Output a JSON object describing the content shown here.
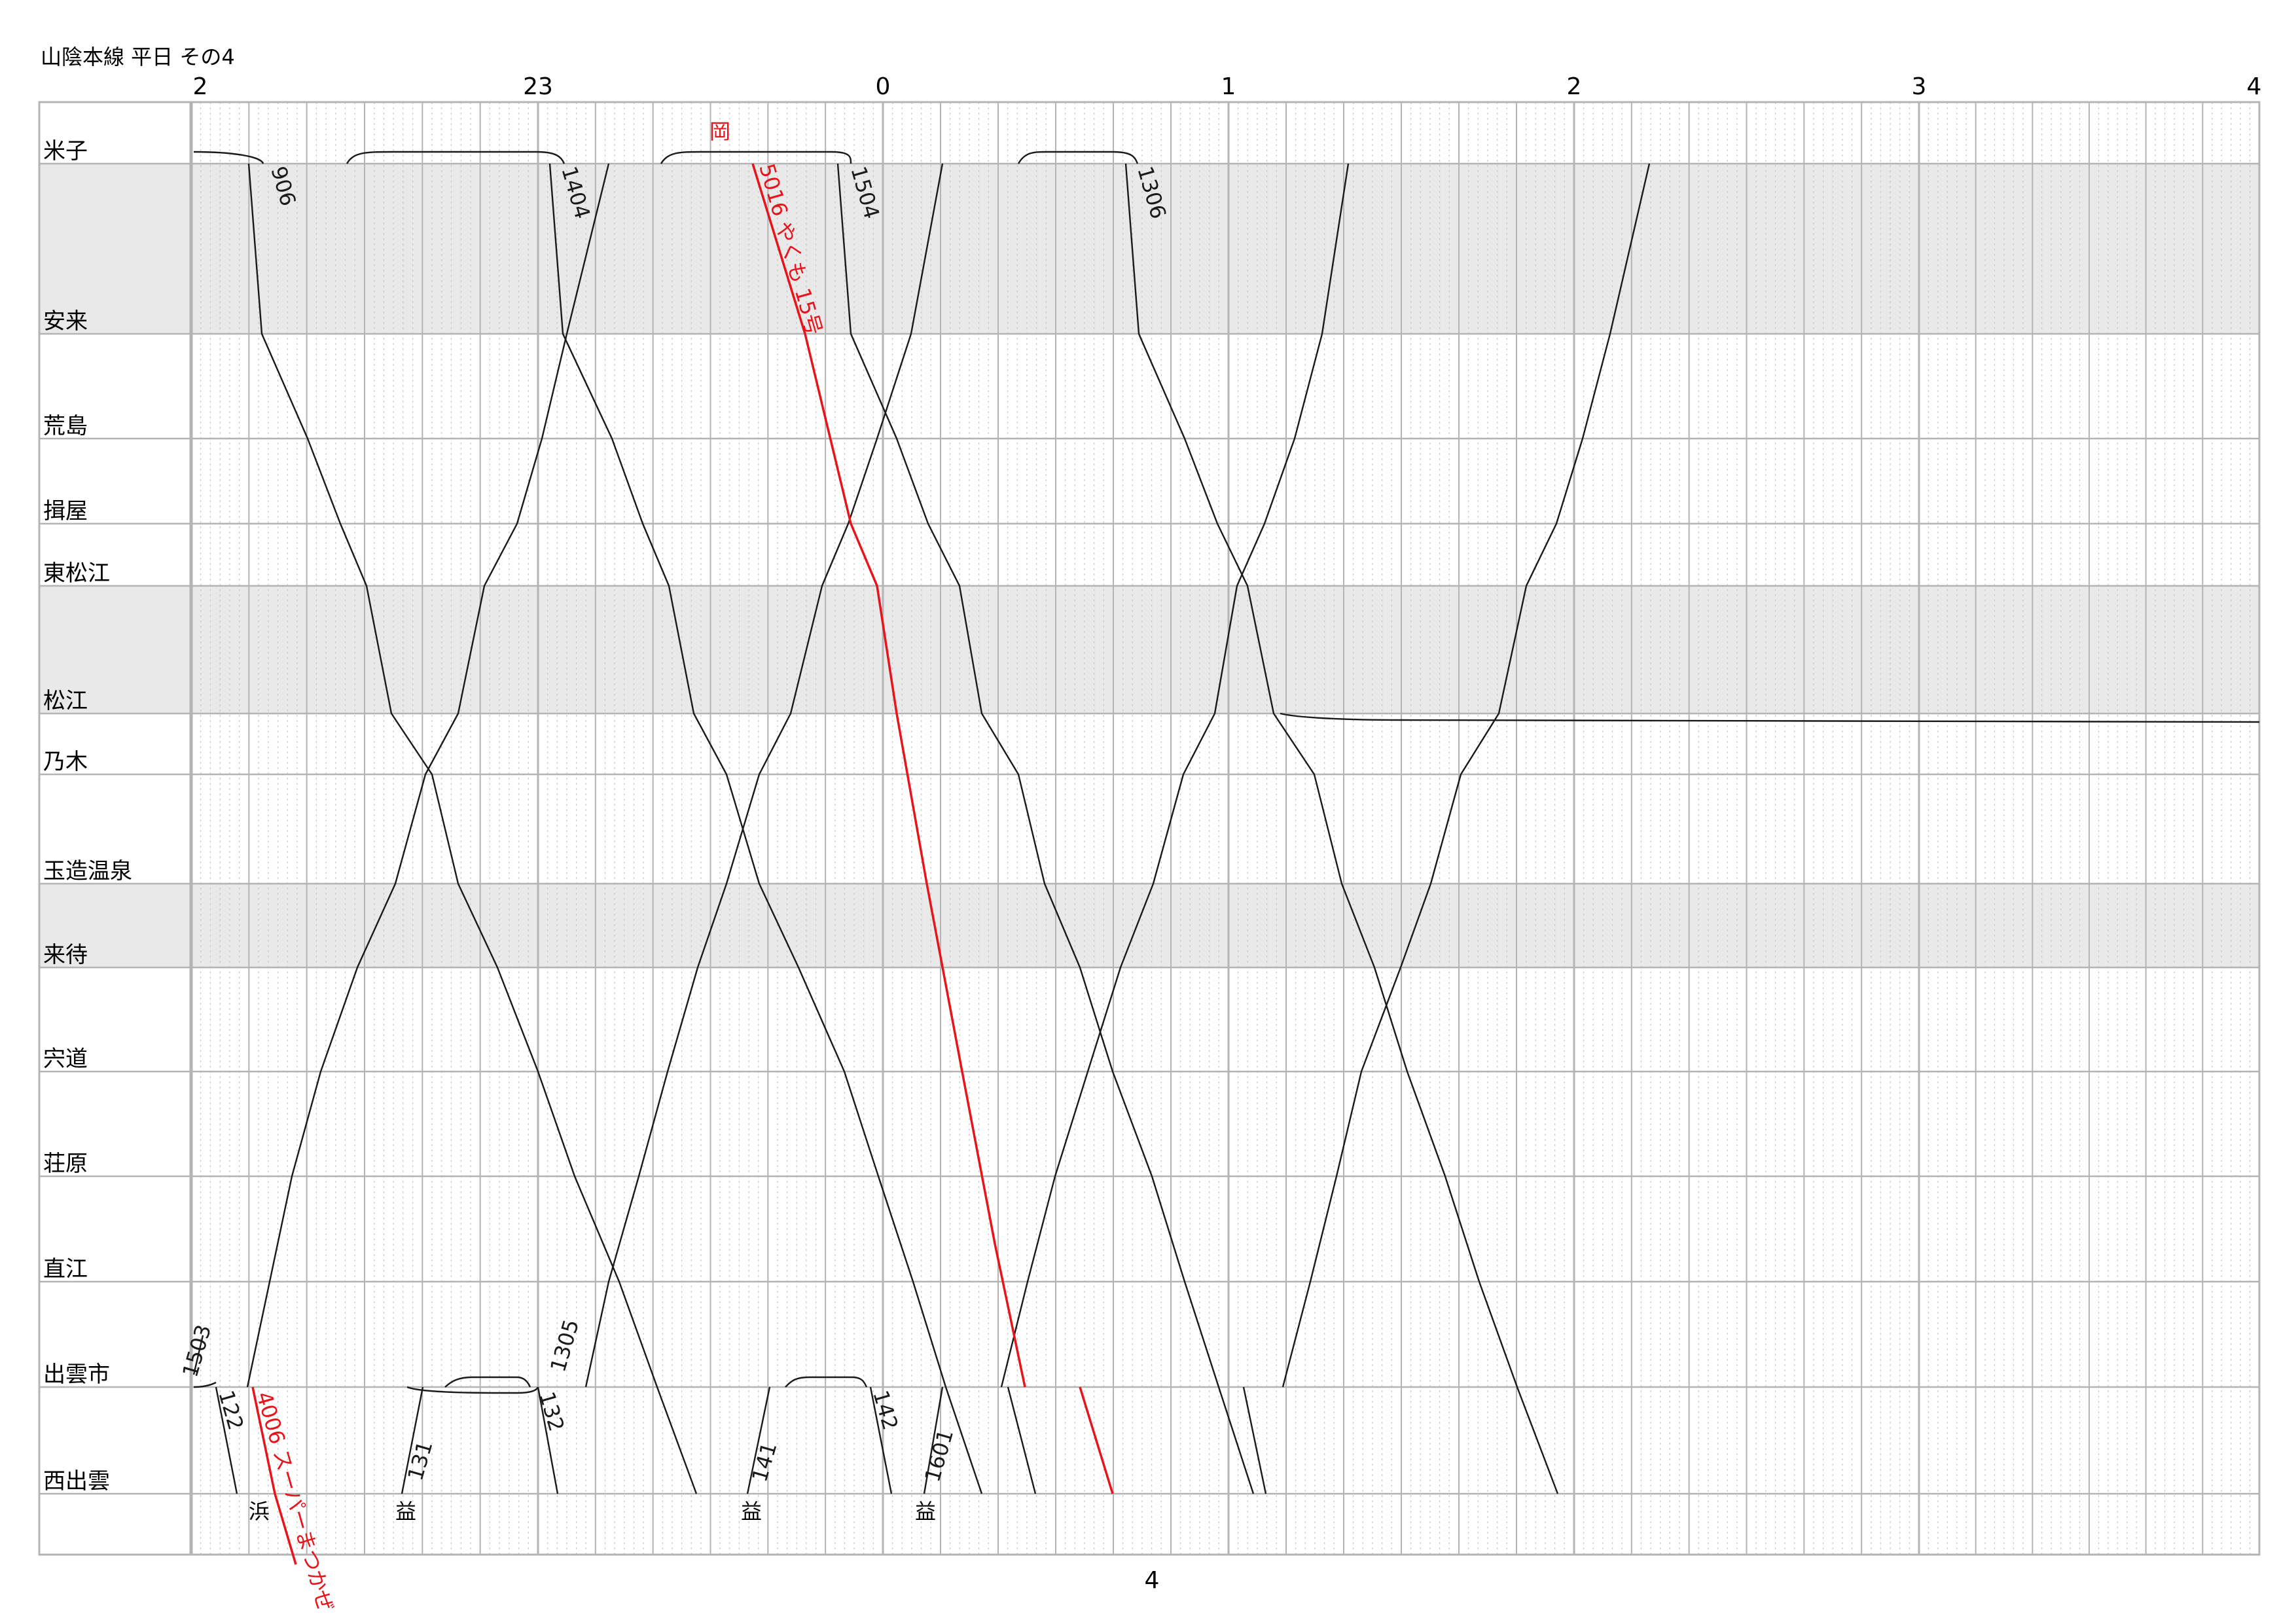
{
  "title": "山陰本線 平日 その4",
  "page_number": "4",
  "hour_labels": [
    "2",
    "23",
    "0",
    "1",
    "2",
    "3",
    "4"
  ],
  "stations": [
    {
      "name": "米子",
      "shaded": false
    },
    {
      "name": "安来",
      "shaded": true
    },
    {
      "name": "荒島",
      "shaded": false
    },
    {
      "name": "揖屋",
      "shaded": false
    },
    {
      "name": "東松江",
      "shaded": false
    },
    {
      "name": "松江",
      "shaded": true
    },
    {
      "name": "乃木",
      "shaded": false
    },
    {
      "name": "玉造温泉",
      "shaded": false
    },
    {
      "name": "来待",
      "shaded": true
    },
    {
      "name": "宍道",
      "shaded": false
    },
    {
      "name": "荘原",
      "shaded": false
    },
    {
      "name": "直江",
      "shaded": false
    },
    {
      "name": "出雲市",
      "shaded": false
    },
    {
      "name": "西出雲",
      "shaded": false
    }
  ],
  "train_labels": [
    {
      "text": "906",
      "color": "#1a1a1a"
    },
    {
      "text": "1404",
      "color": "#1a1a1a"
    },
    {
      "text": "1504",
      "color": "#1a1a1a"
    },
    {
      "text": "1306",
      "color": "#1a1a1a"
    },
    {
      "text": "5016 やくも 15号",
      "color": "#e8141b"
    },
    {
      "text": "岡",
      "color": "#e8141b"
    },
    {
      "text": "1503",
      "color": "#1a1a1a"
    },
    {
      "text": "122",
      "color": "#1a1a1a"
    },
    {
      "text": "4006 スーパーまつかぜ",
      "color": "#e8141b"
    },
    {
      "text": "131",
      "color": "#1a1a1a"
    },
    {
      "text": "1305",
      "color": "#1a1a1a"
    },
    {
      "text": "132",
      "color": "#1a1a1a"
    },
    {
      "text": "141",
      "color": "#1a1a1a"
    },
    {
      "text": "142",
      "color": "#1a1a1a"
    },
    {
      "text": "1601",
      "color": "#1a1a1a"
    }
  ],
  "terminal_labels": [
    "浜",
    "益",
    "益",
    "益"
  ],
  "colors": {
    "grid_major": "#b4b4b4",
    "grid_minor": "#c8c8c8",
    "band_shade": "#e9e9e9",
    "train_line": "#1a1a1a",
    "express_line": "#e8141b"
  }
}
